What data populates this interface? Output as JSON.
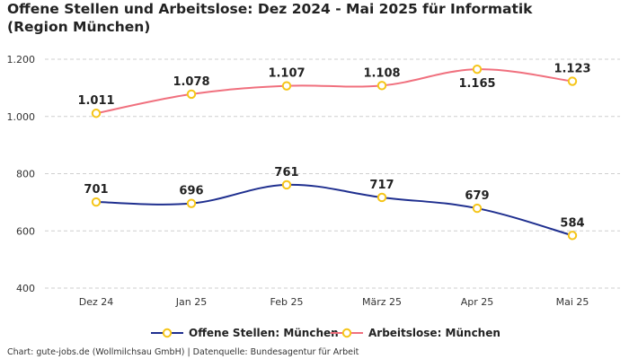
{
  "chart_data": {
    "type": "line",
    "title": "Offene Stellen und Arbeitslose: Dez 2024 - Mai 2025 für Informatik (Region München)",
    "categories": [
      "Dez 24",
      "Jan 25",
      "Feb 25",
      "März 25",
      "Apr 25",
      "Mai 25"
    ],
    "ylim": [
      400,
      1200
    ],
    "yticks": [
      400,
      600,
      800,
      1000,
      1200
    ],
    "ytick_labels": [
      "400",
      "600",
      "800",
      "1.000",
      "1.200"
    ],
    "grid": true,
    "legend_position": "bottom-center",
    "series": [
      {
        "name": "Offene Stellen: München",
        "color": "#1f2f8f",
        "values": [
          701,
          696,
          761,
          717,
          679,
          584
        ],
        "labels": [
          "701",
          "696",
          "761",
          "717",
          "679",
          "584"
        ],
        "label_side": [
          "above",
          "above",
          "above",
          "above",
          "above",
          "above"
        ]
      },
      {
        "name": "Arbeitslose: München",
        "color": "#f0707e",
        "values": [
          1011,
          1078,
          1107,
          1108,
          1165,
          1123
        ],
        "labels": [
          "1.011",
          "1.078",
          "1.107",
          "1.108",
          "1.165",
          "1.123"
        ],
        "label_side": [
          "above",
          "above",
          "above",
          "above",
          "below",
          "above"
        ]
      }
    ],
    "marker": {
      "fill": "#ffffff",
      "stroke": "#f5c518"
    }
  },
  "source": "Chart: gute-jobs.de (Wollmilchsau GmbH) | Datenquelle: Bundesagentur für Arbeit"
}
